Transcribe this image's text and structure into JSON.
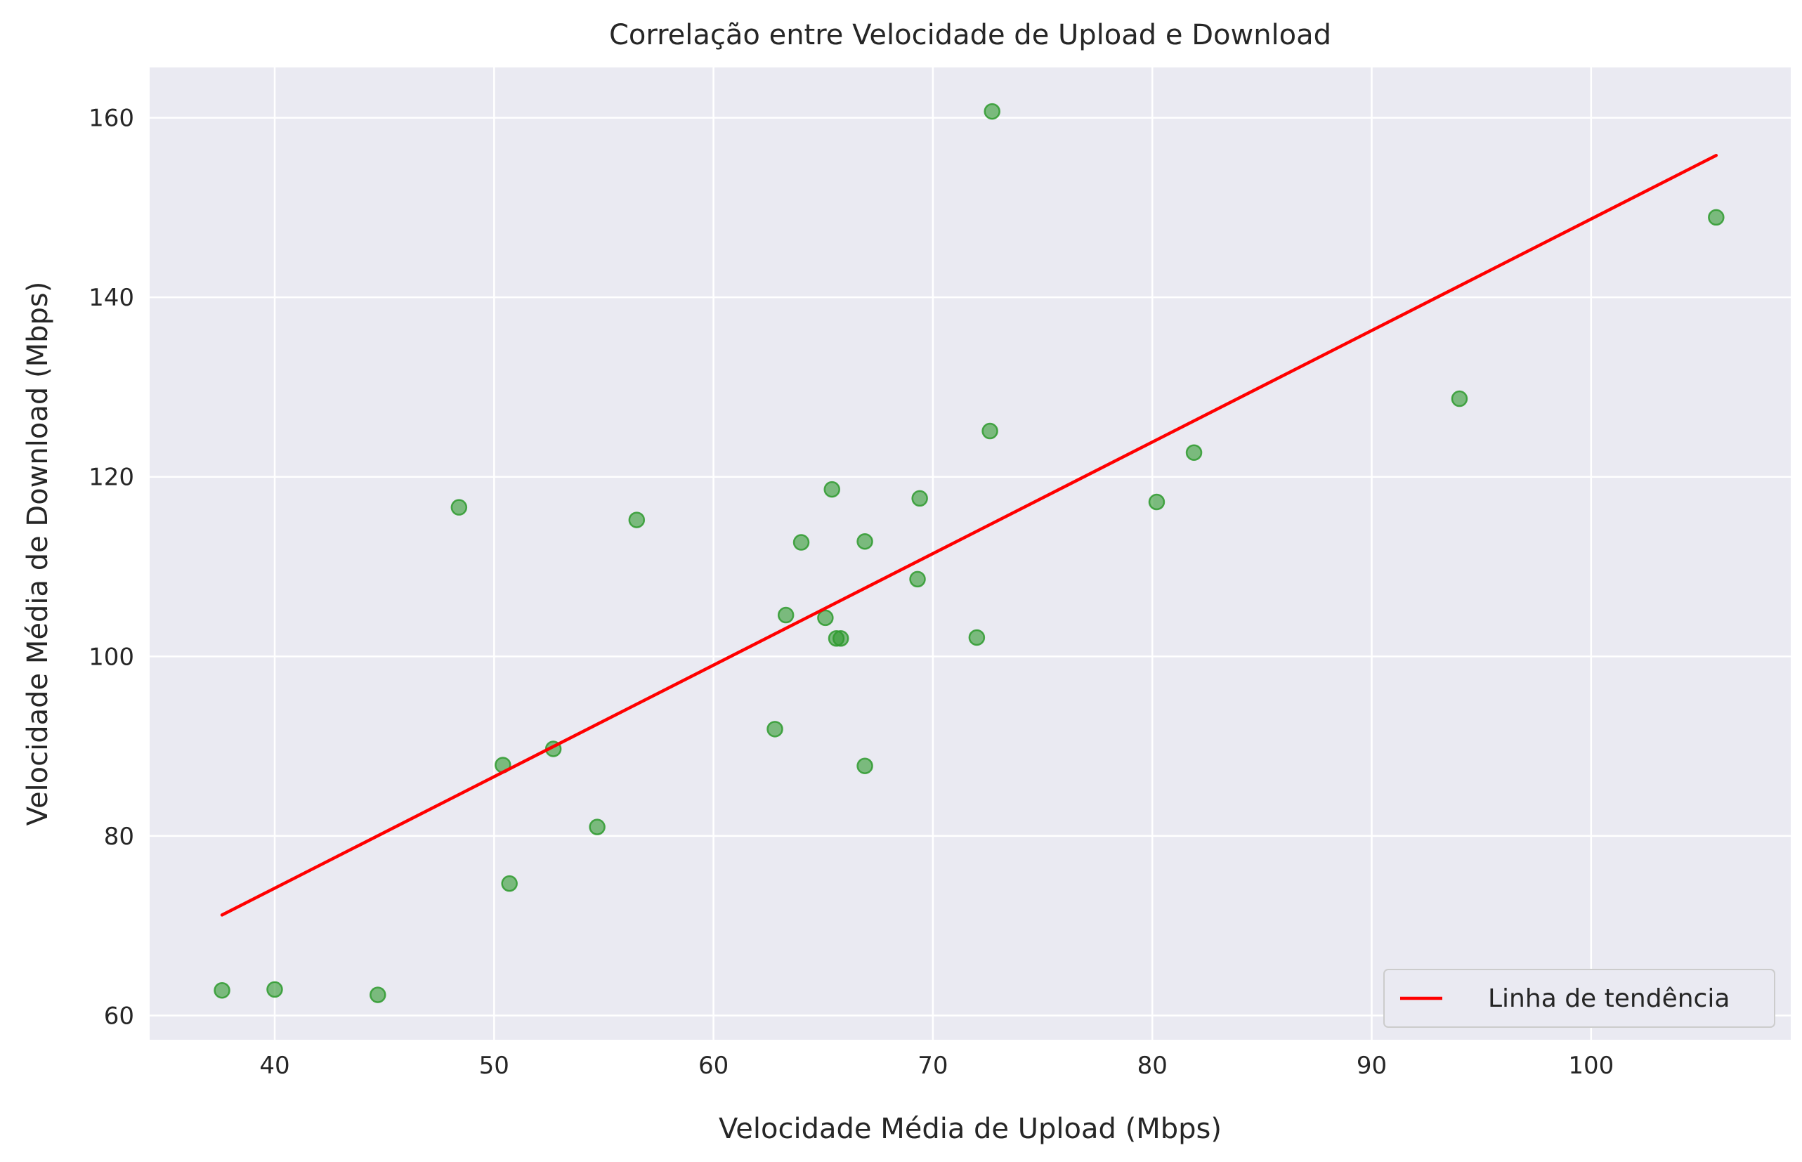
{
  "chart_data": {
    "type": "scatter",
    "title": "Correlação entre Velocidade de Upload e Download",
    "xlabel": "Velocidade Média de Upload (Mbps)",
    "ylabel": "Velocidade Média de Download (Mbps)",
    "xlim": [
      34.3,
      109.1
    ],
    "ylim": [
      57.3,
      165.6
    ],
    "xticks": [
      40,
      50,
      60,
      70,
      80,
      90,
      100
    ],
    "yticks": [
      60,
      80,
      100,
      120,
      140,
      160
    ],
    "grid": true,
    "background_color": "#eaeaf2",
    "point_color": "#2e9a2e",
    "line_color": "#ff0000",
    "legend": {
      "placement": "bottom-right",
      "label": "Linha de tendência"
    },
    "points": [
      {
        "x": 37.6,
        "y": 62.8
      },
      {
        "x": 40.0,
        "y": 62.9
      },
      {
        "x": 44.7,
        "y": 62.3
      },
      {
        "x": 48.4,
        "y": 116.6
      },
      {
        "x": 50.4,
        "y": 87.9
      },
      {
        "x": 50.7,
        "y": 74.7
      },
      {
        "x": 52.7,
        "y": 89.7
      },
      {
        "x": 54.7,
        "y": 81.0
      },
      {
        "x": 56.5,
        "y": 115.2
      },
      {
        "x": 62.8,
        "y": 91.9
      },
      {
        "x": 63.3,
        "y": 104.6
      },
      {
        "x": 64.0,
        "y": 112.7
      },
      {
        "x": 65.1,
        "y": 104.3
      },
      {
        "x": 65.4,
        "y": 118.6
      },
      {
        "x": 65.6,
        "y": 102.0
      },
      {
        "x": 65.8,
        "y": 102.0
      },
      {
        "x": 66.9,
        "y": 112.8
      },
      {
        "x": 66.9,
        "y": 87.8
      },
      {
        "x": 69.3,
        "y": 108.6
      },
      {
        "x": 69.4,
        "y": 117.6
      },
      {
        "x": 72.0,
        "y": 102.1
      },
      {
        "x": 72.6,
        "y": 125.1
      },
      {
        "x": 72.7,
        "y": 160.7
      },
      {
        "x": 80.2,
        "y": 117.2
      },
      {
        "x": 81.9,
        "y": 122.7
      },
      {
        "x": 94.0,
        "y": 128.7
      },
      {
        "x": 105.7,
        "y": 148.9
      }
    ],
    "trend_line": [
      {
        "x": 37.6,
        "y": 71.2
      },
      {
        "x": 105.7,
        "y": 155.8
      }
    ]
  }
}
